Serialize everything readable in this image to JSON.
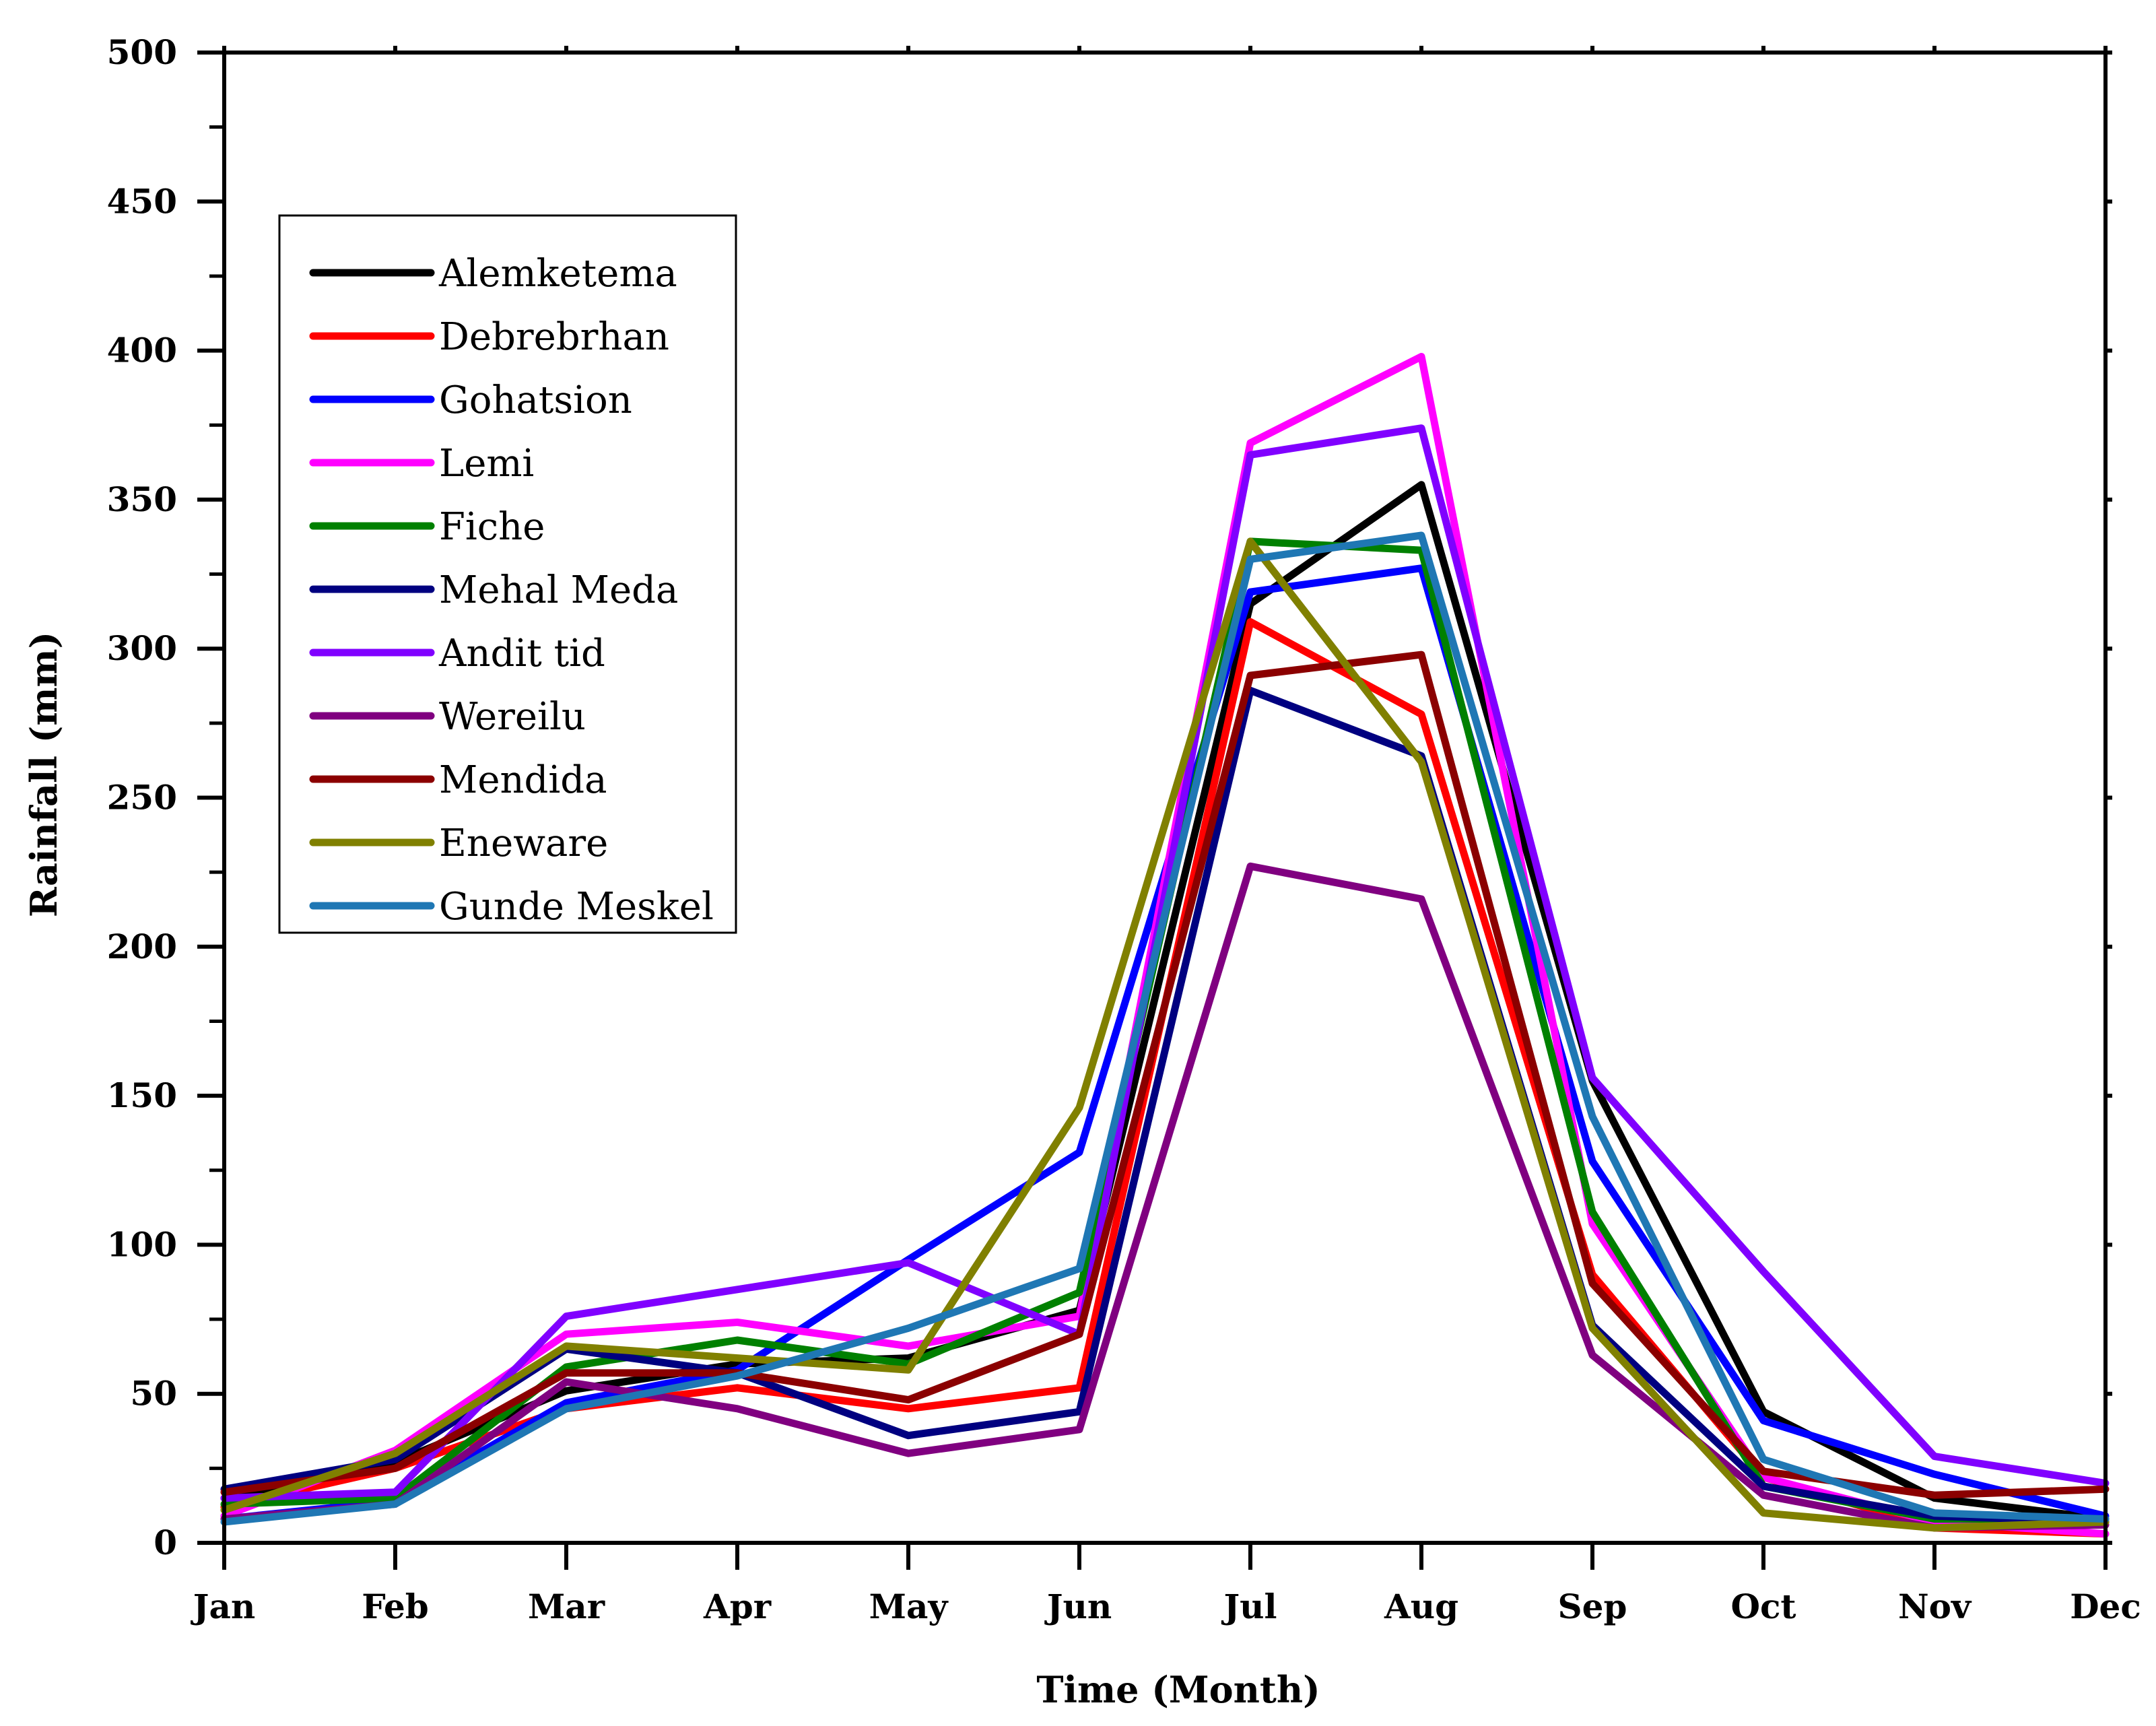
{
  "chart_data": {
    "type": "line",
    "title": "",
    "xlabel": "Time (Month)",
    "ylabel": "Rainfall (mm)",
    "ylim": [
      0,
      500
    ],
    "yticks": [
      0,
      50,
      100,
      150,
      200,
      250,
      300,
      350,
      400,
      450,
      500
    ],
    "grid": false,
    "legend_position": "top-left",
    "categories": [
      "Jan",
      "Feb",
      "Mar",
      "Apr",
      "May",
      "Jun",
      "Jul",
      "Aug",
      "Sep",
      "Oct",
      "Nov",
      "Dec"
    ],
    "series": [
      {
        "name": "Alemketema",
        "color": "#000000",
        "values": [
          15,
          27,
          51,
          60,
          62,
          78,
          315,
          355,
          155,
          44,
          15,
          8
        ]
      },
      {
        "name": "Debrebrhan",
        "color": "#ff0000",
        "values": [
          12,
          25,
          45,
          52,
          45,
          52,
          309,
          278,
          90,
          22,
          5,
          3
        ]
      },
      {
        "name": "Gohatsion",
        "color": "#0000ff",
        "values": [
          8,
          14,
          47,
          58,
          95,
          131,
          319,
          327,
          128,
          41,
          23,
          9
        ]
      },
      {
        "name": "Lemi",
        "color": "#ff00ff",
        "values": [
          9,
          31,
          70,
          74,
          66,
          76,
          369,
          398,
          107,
          22,
          7,
          3
        ]
      },
      {
        "name": "Fiche",
        "color": "#008000",
        "values": [
          13,
          15,
          59,
          68,
          60,
          84,
          336,
          333,
          111,
          19,
          8,
          8
        ]
      },
      {
        "name": "Mehal Meda",
        "color": "#000080",
        "values": [
          18,
          28,
          65,
          57,
          36,
          44,
          286,
          264,
          73,
          19,
          9,
          7
        ]
      },
      {
        "name": "Andit tid",
        "color": "#8000ff",
        "values": [
          15,
          17,
          76,
          85,
          94,
          70,
          365,
          374,
          156,
          91,
          29,
          20
        ]
      },
      {
        "name": "Wereilu",
        "color": "#800080",
        "values": [
          8,
          13,
          54,
          45,
          30,
          38,
          227,
          216,
          63,
          16,
          5,
          6
        ]
      },
      {
        "name": "Mendida",
        "color": "#8b0000",
        "values": [
          17,
          25,
          57,
          57,
          48,
          70,
          291,
          298,
          87,
          24,
          16,
          18
        ]
      },
      {
        "name": "Eneware",
        "color": "#808000",
        "values": [
          11,
          30,
          66,
          62,
          58,
          146,
          336,
          262,
          72,
          10,
          5,
          7
        ]
      },
      {
        "name": "Gunde Meskel",
        "color": "#1f77b4",
        "values": [
          7,
          13,
          45,
          56,
          72,
          92,
          330,
          338,
          143,
          28,
          10,
          8
        ]
      }
    ]
  }
}
